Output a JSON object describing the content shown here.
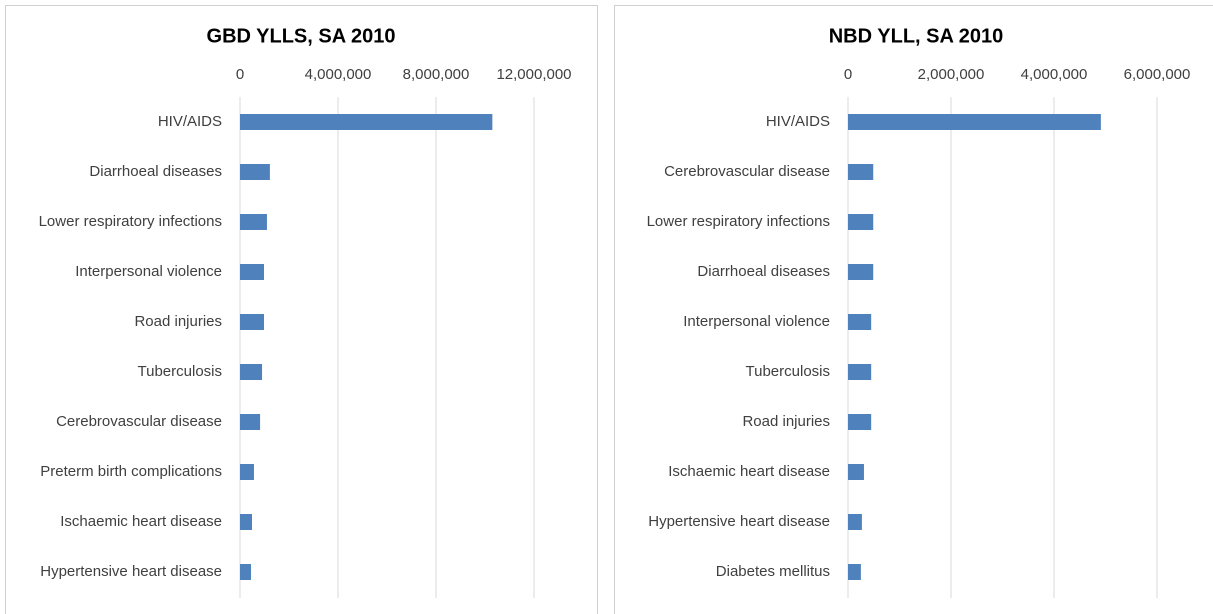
{
  "chart_data": [
    {
      "type": "bar",
      "orientation": "horizontal",
      "title": "GBD YLLS, SA 2010",
      "categories": [
        "HIV/AIDS",
        "Diarrhoeal diseases",
        "Lower respiratory infections",
        "Interpersonal violence",
        "Road injuries",
        "Tuberculosis",
        "Cerebrovascular disease",
        "Preterm birth complications",
        "Ischaemic heart disease",
        "Hypertensive heart disease"
      ],
      "values": [
        10300000,
        1220000,
        1100000,
        980000,
        980000,
        900000,
        820000,
        570000,
        490000,
        450000
      ],
      "color": "#4f81bd",
      "xlim": [
        0,
        12000000
      ],
      "xticks": [
        0,
        {
          "value": 4000000,
          "label": "4,000,000"
        },
        {
          "value": 8000000,
          "label": "8,000,000"
        },
        {
          "value": 12000000,
          "label": "12,000,000"
        }
      ],
      "grid": true
    },
    {
      "type": "bar",
      "orientation": "horizontal",
      "title": "NBD YLL, SA 2010",
      "categories": [
        "HIV/AIDS",
        "Cerebrovascular disease",
        "Lower respiratory infections",
        "Diarrhoeal diseases",
        "Interpersonal violence",
        "Tuberculosis",
        "Road injuries",
        "Ischaemic heart disease",
        "Hypertensive heart disease",
        "Diabetes mellitus"
      ],
      "values": [
        4910000,
        490000,
        490000,
        490000,
        450000,
        450000,
        450000,
        310000,
        270000,
        250000
      ],
      "color": "#4f81bd",
      "xlim": [
        0,
        6000000
      ],
      "xticks": [
        0,
        {
          "value": 2000000,
          "label": "2,000,000"
        },
        {
          "value": 4000000,
          "label": "4,000,000"
        },
        {
          "value": 6000000,
          "label": "6,000,000"
        }
      ],
      "grid": true
    }
  ]
}
